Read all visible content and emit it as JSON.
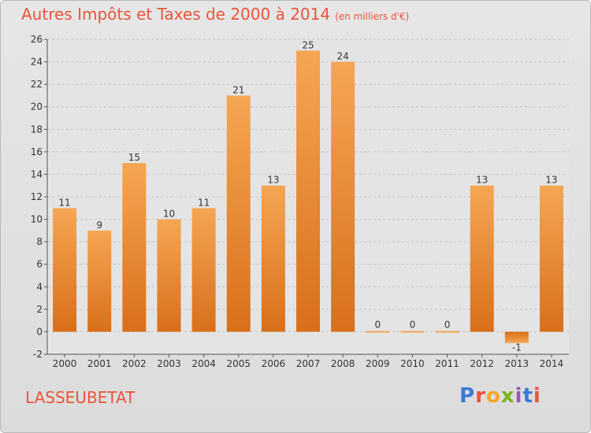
{
  "header": {
    "title": "Autres Impôts et Taxes de 2000 à 2014",
    "unit": "(en milliers d'€)"
  },
  "footer": {
    "commune": "LASSEUBETAT",
    "brand": "Proxiti"
  },
  "colors": {
    "bar_top": "#f5a653",
    "bar_bottom": "#d96f1a",
    "title": "#e8563a"
  },
  "chart_data": {
    "type": "bar",
    "categories": [
      "2000",
      "2001",
      "2002",
      "2003",
      "2004",
      "2005",
      "2006",
      "2007",
      "2008",
      "2009",
      "2010",
      "2011",
      "2012",
      "2013",
      "2014"
    ],
    "values": [
      11,
      9,
      15,
      10,
      11,
      21,
      13,
      25,
      24,
      0,
      0,
      0,
      13,
      -1,
      13
    ],
    "ylim": [
      -2,
      26
    ],
    "yticks": [
      -2,
      0,
      2,
      4,
      6,
      8,
      10,
      12,
      14,
      16,
      18,
      20,
      22,
      24,
      26
    ],
    "grid": true
  }
}
